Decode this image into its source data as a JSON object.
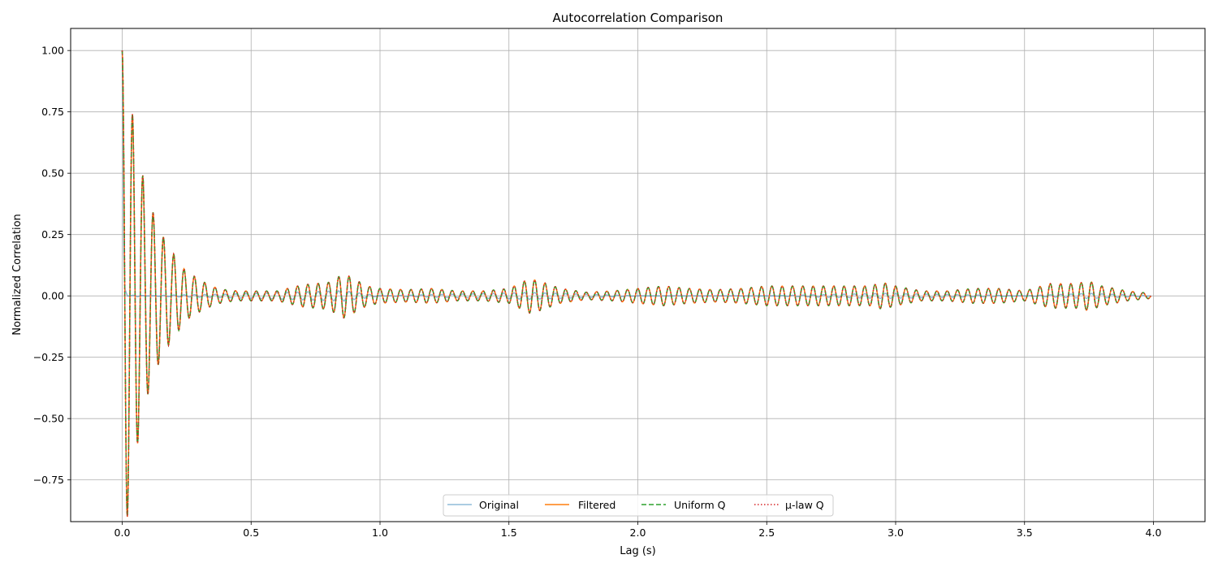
{
  "chart_data": {
    "type": "line",
    "title": "Autocorrelation Comparison",
    "xlabel": "Lag (s)",
    "ylabel": "Normalized Correlation",
    "xlim": [
      -0.2,
      4.2
    ],
    "ylim": [
      -0.92,
      1.09
    ],
    "xticks": [
      0.0,
      0.5,
      1.0,
      1.5,
      2.0,
      2.5,
      3.0,
      3.5,
      4.0
    ],
    "xtick_labels": [
      "0.0",
      "0.5",
      "1.0",
      "1.5",
      "2.0",
      "2.5",
      "3.0",
      "3.5",
      "4.0"
    ],
    "yticks": [
      1.0,
      0.75,
      0.5,
      0.25,
      0.0,
      -0.25,
      -0.5,
      -0.75
    ],
    "ytick_labels": [
      "1.00",
      "0.75",
      "0.50",
      "0.25",
      "0.00",
      "−0.25",
      "−0.50",
      "−0.75"
    ],
    "grid": true,
    "legend_position": "lower center",
    "series": [
      {
        "name": "Original",
        "color": "#1f77b4",
        "alpha": 0.5,
        "linestyle": "solid",
        "description": "near-zero except spike at lag 0",
        "x": [
          0.0,
          0.003,
          0.006,
          0.01,
          0.02,
          0.05,
          0.1,
          0.2,
          0.4,
          0.86,
          1.0,
          1.58,
          2.0,
          2.5,
          2.95,
          3.5,
          3.75,
          4.0
        ],
        "y": [
          1.0,
          0.7,
          0.18,
          0.03,
          0.0,
          0.01,
          0.0,
          0.01,
          0.02,
          0.06,
          0.0,
          0.04,
          0.0,
          0.0,
          0.03,
          0.0,
          0.03,
          0.0
        ]
      },
      {
        "name": "Filtered",
        "color": "#ff7f0e",
        "linestyle": "solid"
      },
      {
        "name": "Uniform Q",
        "color": "#2ca02c",
        "linestyle": "dashed"
      },
      {
        "name": "μ-law Q",
        "color": "#d62728",
        "linestyle": "dotted"
      }
    ],
    "oscillation_envelope": {
      "applies_to": [
        "Filtered",
        "Uniform Q",
        "μ-law Q"
      ],
      "period_s": 0.04,
      "x": [
        0.0,
        0.02,
        0.04,
        0.06,
        0.08,
        0.1,
        0.12,
        0.14,
        0.16,
        0.18,
        0.2,
        0.22,
        0.24,
        0.26,
        0.28,
        0.3,
        0.32,
        0.34,
        0.36,
        0.4,
        0.45,
        0.5,
        0.6,
        0.7,
        0.8,
        0.86,
        0.88,
        0.95,
        1.0,
        1.1,
        1.2,
        1.3,
        1.4,
        1.5,
        1.58,
        1.62,
        1.7,
        1.8,
        1.9,
        2.0,
        2.1,
        2.2,
        2.3,
        2.4,
        2.5,
        2.6,
        2.7,
        2.8,
        2.9,
        2.95,
        3.0,
        3.1,
        3.2,
        3.3,
        3.4,
        3.5,
        3.6,
        3.7,
        3.75,
        3.8,
        3.9,
        3.99
      ],
      "amplitude": [
        1.0,
        0.9,
        0.74,
        0.6,
        0.49,
        0.4,
        0.34,
        0.28,
        0.24,
        0.2,
        0.17,
        0.14,
        0.11,
        0.09,
        0.08,
        0.065,
        0.055,
        0.045,
        0.035,
        0.025,
        0.02,
        0.02,
        0.02,
        0.045,
        0.055,
        0.09,
        0.08,
        0.04,
        0.03,
        0.025,
        0.03,
        0.02,
        0.02,
        0.03,
        0.07,
        0.06,
        0.03,
        0.015,
        0.02,
        0.03,
        0.04,
        0.03,
        0.025,
        0.03,
        0.04,
        0.04,
        0.04,
        0.04,
        0.04,
        0.055,
        0.04,
        0.02,
        0.02,
        0.03,
        0.03,
        0.02,
        0.05,
        0.05,
        0.06,
        0.04,
        0.02,
        0.01
      ]
    }
  }
}
